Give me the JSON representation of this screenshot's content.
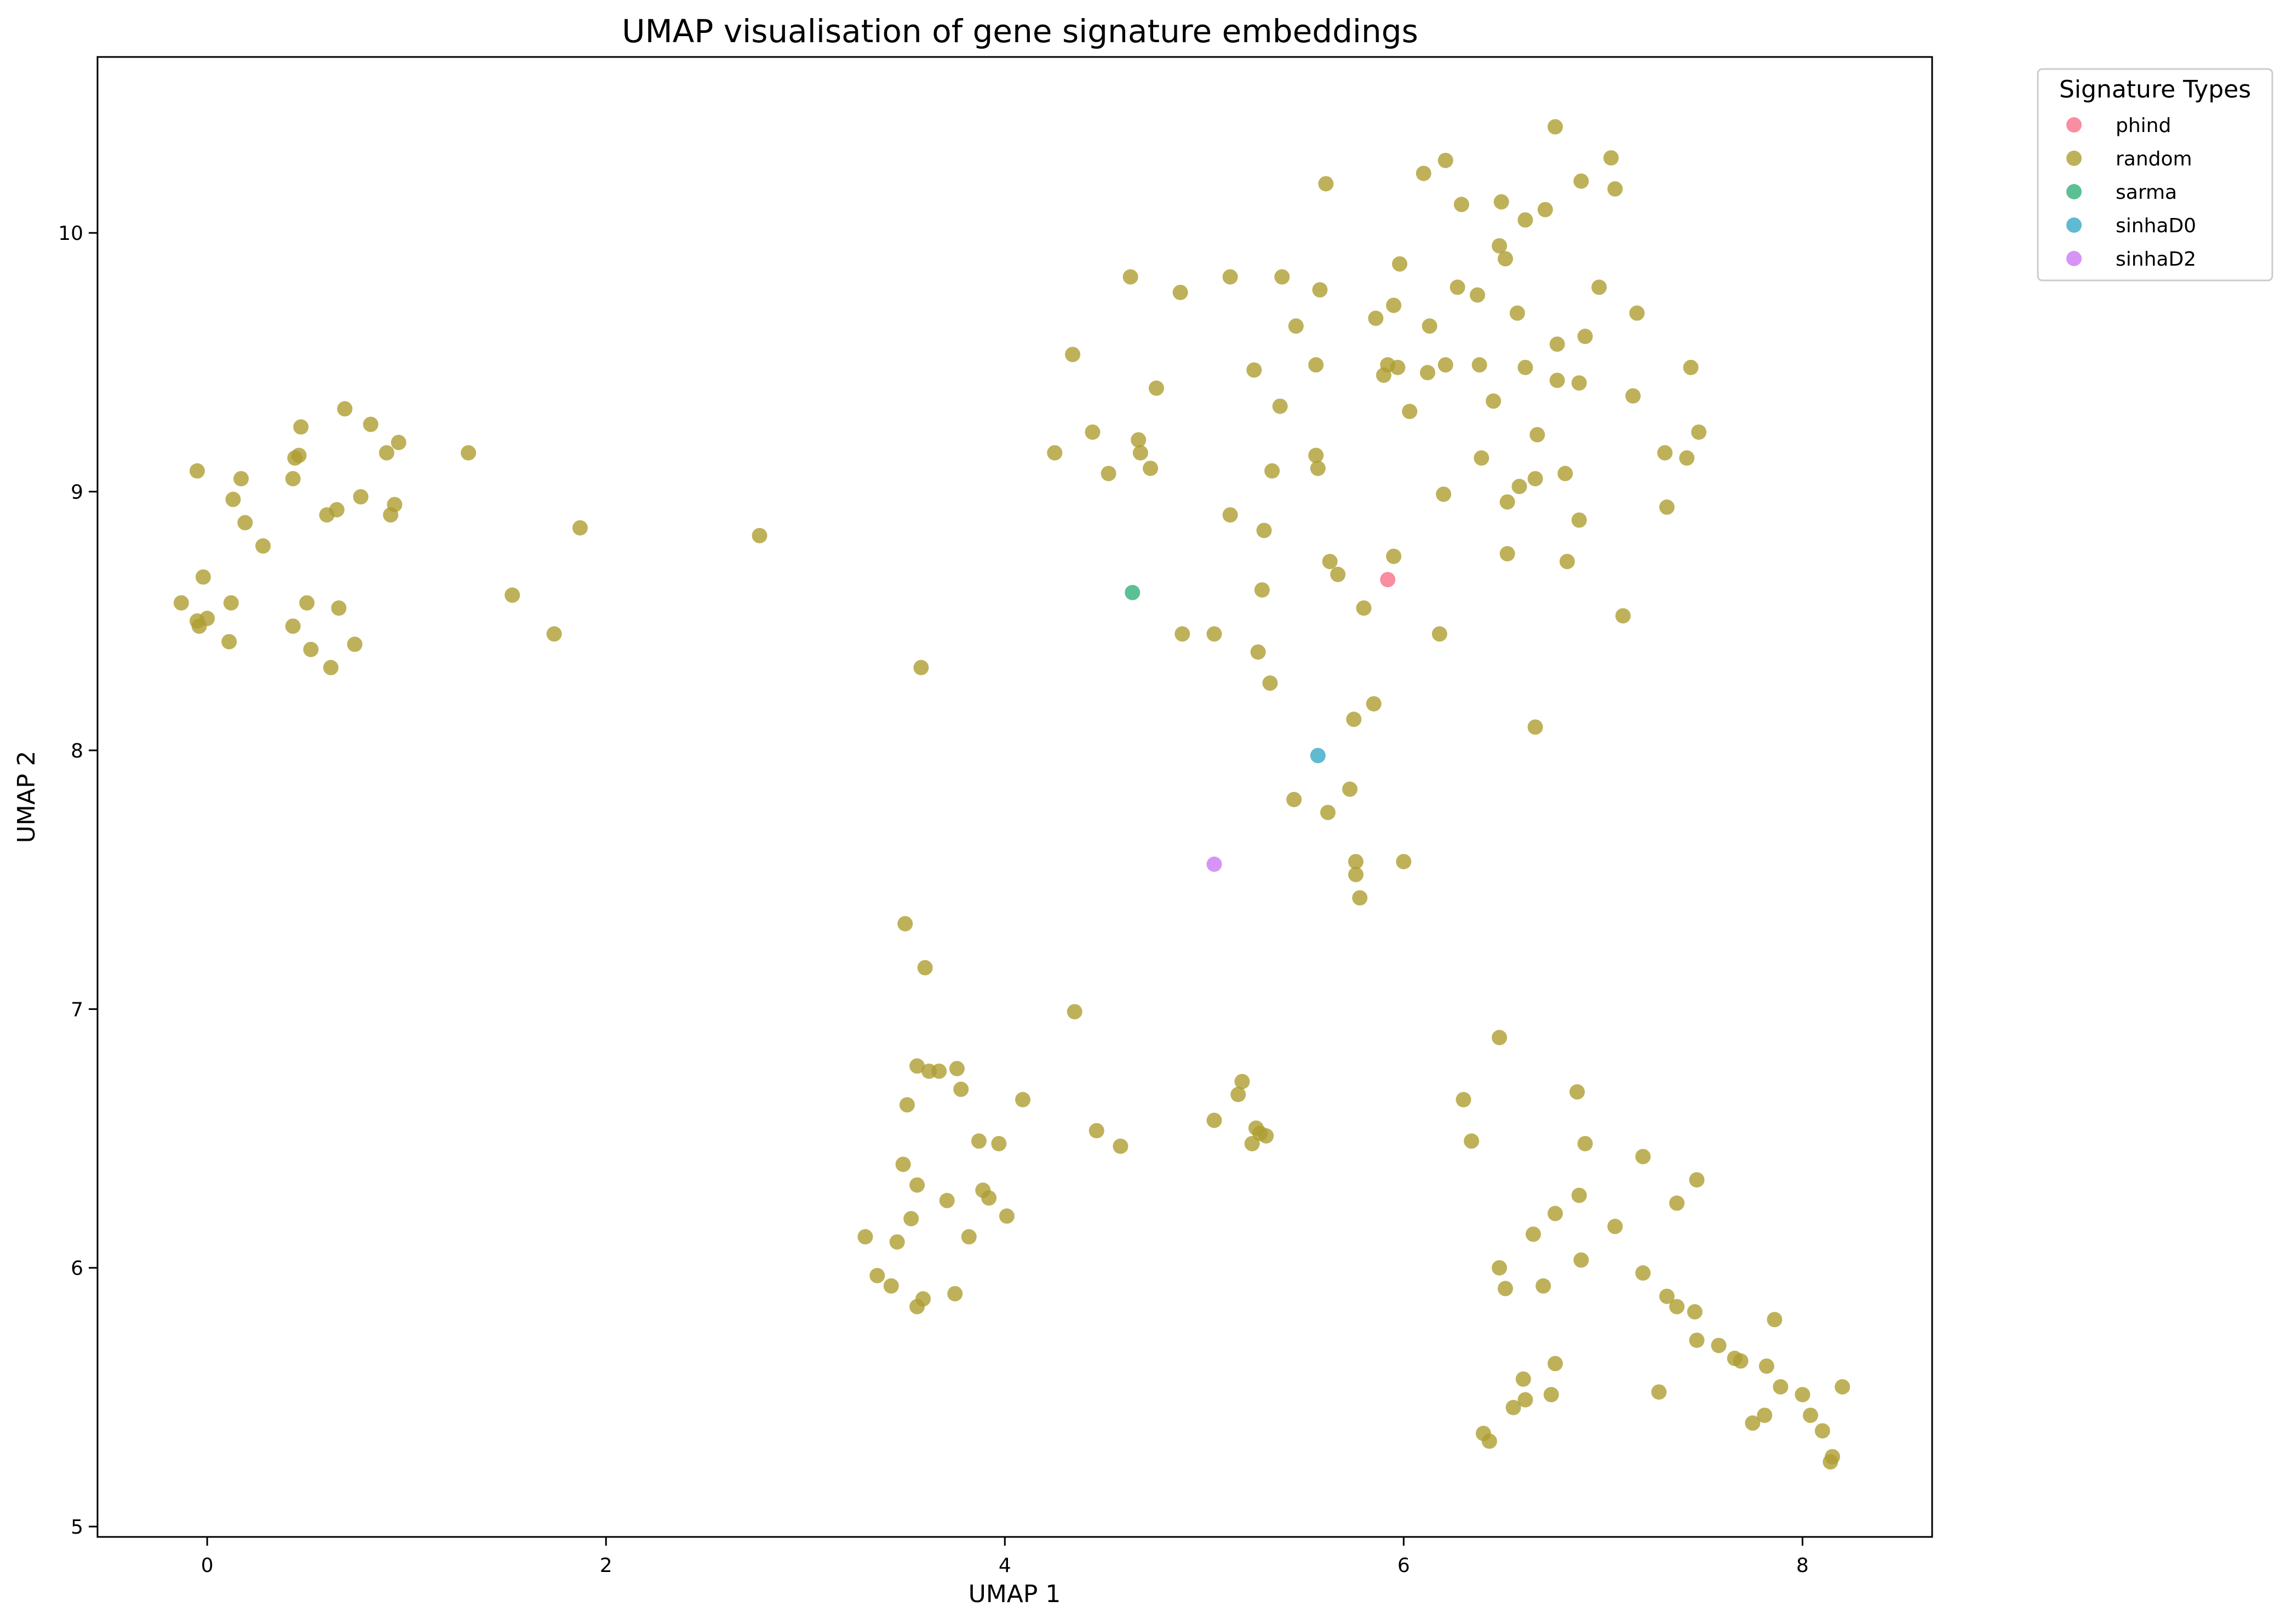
{
  "chart_data": {
    "type": "scatter",
    "title": "UMAP visualisation of gene signature embeddings",
    "xlabel": "UMAP 1",
    "ylabel": "UMAP 2",
    "xlim": [
      -0.55,
      8.65
    ],
    "ylim": [
      4.96,
      10.68
    ],
    "xticks": [
      0,
      2,
      4,
      6,
      8
    ],
    "yticks": [
      5,
      6,
      7,
      8,
      9,
      10
    ],
    "grid": false,
    "legend": {
      "title": "Signature Types",
      "placement": "outside-top-right"
    },
    "series": [
      {
        "name": "phind",
        "color": "#f77189",
        "points": [
          [
            5.92,
            8.66
          ]
        ]
      },
      {
        "name": "random",
        "color": "#ae9d31",
        "points": [
          [
            -0.13,
            8.57
          ],
          [
            -0.05,
            9.08
          ],
          [
            -0.05,
            8.5
          ],
          [
            -0.04,
            8.48
          ],
          [
            -0.02,
            8.67
          ],
          [
            0.0,
            8.51
          ],
          [
            0.11,
            8.42
          ],
          [
            0.12,
            8.57
          ],
          [
            0.13,
            8.97
          ],
          [
            0.17,
            9.05
          ],
          [
            0.19,
            8.88
          ],
          [
            0.28,
            8.79
          ],
          [
            0.43,
            8.48
          ],
          [
            0.43,
            9.05
          ],
          [
            0.44,
            9.13
          ],
          [
            0.46,
            9.14
          ],
          [
            0.47,
            9.25
          ],
          [
            0.5,
            8.57
          ],
          [
            0.52,
            8.39
          ],
          [
            0.6,
            8.91
          ],
          [
            0.62,
            8.32
          ],
          [
            0.65,
            8.93
          ],
          [
            0.66,
            8.55
          ],
          [
            0.69,
            9.32
          ],
          [
            0.74,
            8.41
          ],
          [
            0.77,
            8.98
          ],
          [
            0.82,
            9.26
          ],
          [
            0.9,
            9.15
          ],
          [
            0.92,
            8.91
          ],
          [
            0.94,
            8.95
          ],
          [
            0.96,
            9.19
          ],
          [
            1.31,
            9.15
          ],
          [
            1.53,
            8.6
          ],
          [
            1.74,
            8.45
          ],
          [
            1.87,
            8.86
          ],
          [
            2.77,
            8.83
          ],
          [
            3.58,
            8.32
          ],
          [
            3.5,
            7.33
          ],
          [
            3.6,
            7.16
          ],
          [
            3.3,
            6.12
          ],
          [
            3.36,
            5.97
          ],
          [
            3.43,
            5.93
          ],
          [
            3.46,
            6.1
          ],
          [
            3.49,
            6.4
          ],
          [
            3.51,
            6.63
          ],
          [
            3.53,
            6.19
          ],
          [
            3.56,
            6.32
          ],
          [
            3.56,
            5.85
          ],
          [
            3.56,
            6.78
          ],
          [
            3.59,
            5.88
          ],
          [
            3.62,
            6.76
          ],
          [
            3.67,
            6.76
          ],
          [
            3.71,
            6.26
          ],
          [
            3.75,
            5.9
          ],
          [
            3.76,
            6.77
          ],
          [
            3.78,
            6.69
          ],
          [
            3.82,
            6.12
          ],
          [
            3.87,
            6.49
          ],
          [
            3.89,
            6.3
          ],
          [
            3.92,
            6.27
          ],
          [
            3.97,
            6.48
          ],
          [
            4.01,
            6.2
          ],
          [
            4.09,
            6.65
          ],
          [
            4.35,
            6.99
          ],
          [
            4.46,
            6.53
          ],
          [
            4.58,
            6.47
          ],
          [
            5.05,
            6.57
          ],
          [
            5.17,
            6.67
          ],
          [
            5.19,
            6.72
          ],
          [
            5.24,
            6.48
          ],
          [
            5.26,
            6.54
          ],
          [
            5.28,
            6.52
          ],
          [
            5.31,
            6.51
          ],
          [
            4.25,
            9.15
          ],
          [
            4.34,
            9.53
          ],
          [
            4.44,
            9.23
          ],
          [
            4.52,
            9.07
          ],
          [
            4.63,
            9.83
          ],
          [
            4.67,
            9.2
          ],
          [
            4.68,
            9.15
          ],
          [
            4.73,
            9.09
          ],
          [
            4.76,
            9.4
          ],
          [
            4.88,
            9.77
          ],
          [
            4.89,
            8.45
          ],
          [
            5.05,
            8.45
          ],
          [
            5.13,
            9.83
          ],
          [
            5.13,
            8.91
          ],
          [
            5.25,
            9.47
          ],
          [
            5.27,
            8.38
          ],
          [
            5.29,
            8.62
          ],
          [
            5.3,
            8.85
          ],
          [
            5.33,
            8.26
          ],
          [
            5.34,
            9.08
          ],
          [
            5.38,
            9.33
          ],
          [
            5.39,
            9.83
          ],
          [
            5.46,
            9.64
          ],
          [
            5.45,
            7.81
          ],
          [
            5.56,
            9.14
          ],
          [
            5.56,
            9.49
          ],
          [
            5.57,
            9.09
          ],
          [
            5.58,
            9.78
          ],
          [
            5.61,
            10.19
          ],
          [
            5.62,
            7.76
          ],
          [
            5.63,
            8.73
          ],
          [
            5.67,
            8.68
          ],
          [
            5.73,
            7.85
          ],
          [
            5.75,
            8.12
          ],
          [
            5.76,
            7.52
          ],
          [
            5.76,
            7.57
          ],
          [
            5.78,
            7.43
          ],
          [
            5.8,
            8.55
          ],
          [
            5.85,
            8.18
          ],
          [
            5.86,
            9.67
          ],
          [
            5.9,
            9.45
          ],
          [
            5.92,
            9.49
          ],
          [
            5.95,
            9.72
          ],
          [
            5.95,
            8.75
          ],
          [
            5.97,
            9.48
          ],
          [
            5.98,
            9.88
          ],
          [
            6.0,
            7.57
          ],
          [
            6.03,
            9.31
          ],
          [
            6.1,
            10.23
          ],
          [
            6.12,
            9.46
          ],
          [
            6.13,
            9.64
          ],
          [
            6.18,
            8.45
          ],
          [
            6.2,
            8.99
          ],
          [
            6.21,
            10.28
          ],
          [
            6.21,
            9.49
          ],
          [
            6.27,
            9.79
          ],
          [
            6.29,
            10.11
          ],
          [
            6.37,
            9.76
          ],
          [
            6.38,
            9.49
          ],
          [
            6.39,
            9.13
          ],
          [
            6.45,
            9.35
          ],
          [
            6.48,
            9.95
          ],
          [
            6.49,
            10.12
          ],
          [
            6.51,
            9.9
          ],
          [
            6.52,
            8.76
          ],
          [
            6.52,
            8.96
          ],
          [
            6.57,
            9.69
          ],
          [
            6.58,
            9.02
          ],
          [
            6.61,
            9.48
          ],
          [
            6.61,
            10.05
          ],
          [
            6.66,
            9.05
          ],
          [
            6.67,
            9.22
          ],
          [
            6.71,
            10.09
          ],
          [
            6.76,
            10.41
          ],
          [
            6.77,
            9.43
          ],
          [
            6.77,
            9.57
          ],
          [
            6.82,
            8.73
          ],
          [
            6.81,
            9.07
          ],
          [
            6.88,
            9.42
          ],
          [
            6.88,
            8.89
          ],
          [
            6.89,
            10.2
          ],
          [
            6.91,
            9.6
          ],
          [
            6.98,
            9.79
          ],
          [
            7.04,
            10.29
          ],
          [
            7.06,
            10.17
          ],
          [
            7.1,
            8.52
          ],
          [
            7.15,
            9.37
          ],
          [
            7.17,
            9.69
          ],
          [
            7.31,
            9.15
          ],
          [
            7.32,
            8.94
          ],
          [
            7.42,
            9.13
          ],
          [
            7.44,
            9.48
          ],
          [
            7.48,
            9.23
          ],
          [
            6.66,
            8.09
          ],
          [
            6.48,
            6.89
          ],
          [
            6.3,
            6.65
          ],
          [
            6.34,
            6.49
          ],
          [
            6.48,
            6.0
          ],
          [
            6.51,
            5.92
          ],
          [
            6.55,
            5.46
          ],
          [
            6.4,
            5.36
          ],
          [
            6.43,
            5.33
          ],
          [
            6.6,
            5.57
          ],
          [
            6.61,
            5.49
          ],
          [
            6.65,
            6.13
          ],
          [
            6.7,
            5.93
          ],
          [
            6.74,
            5.51
          ],
          [
            6.76,
            5.63
          ],
          [
            6.76,
            6.21
          ],
          [
            6.87,
            6.68
          ],
          [
            6.88,
            6.28
          ],
          [
            6.89,
            6.03
          ],
          [
            6.91,
            6.48
          ],
          [
            7.06,
            6.16
          ],
          [
            7.2,
            6.43
          ],
          [
            7.2,
            5.98
          ],
          [
            7.28,
            5.52
          ],
          [
            7.32,
            5.89
          ],
          [
            7.37,
            5.85
          ],
          [
            7.37,
            6.25
          ],
          [
            7.46,
            5.83
          ],
          [
            7.47,
            6.34
          ],
          [
            7.47,
            5.72
          ],
          [
            7.58,
            5.7
          ],
          [
            7.66,
            5.65
          ],
          [
            7.69,
            5.64
          ],
          [
            7.75,
            5.4
          ],
          [
            7.81,
            5.43
          ],
          [
            7.82,
            5.62
          ],
          [
            7.86,
            5.8
          ],
          [
            7.89,
            5.54
          ],
          [
            8.0,
            5.51
          ],
          [
            8.04,
            5.43
          ],
          [
            8.1,
            5.37
          ],
          [
            8.14,
            5.25
          ],
          [
            8.15,
            5.27
          ],
          [
            8.2,
            5.54
          ]
        ]
      },
      {
        "name": "sarma",
        "color": "#33b07a",
        "points": [
          [
            4.64,
            8.61
          ]
        ]
      },
      {
        "name": "sinhaD0",
        "color": "#38a9c5",
        "points": [
          [
            5.57,
            7.98
          ]
        ]
      },
      {
        "name": "sinhaD2",
        "color": "#cc7af4",
        "points": [
          [
            5.05,
            7.56
          ]
        ]
      }
    ]
  }
}
